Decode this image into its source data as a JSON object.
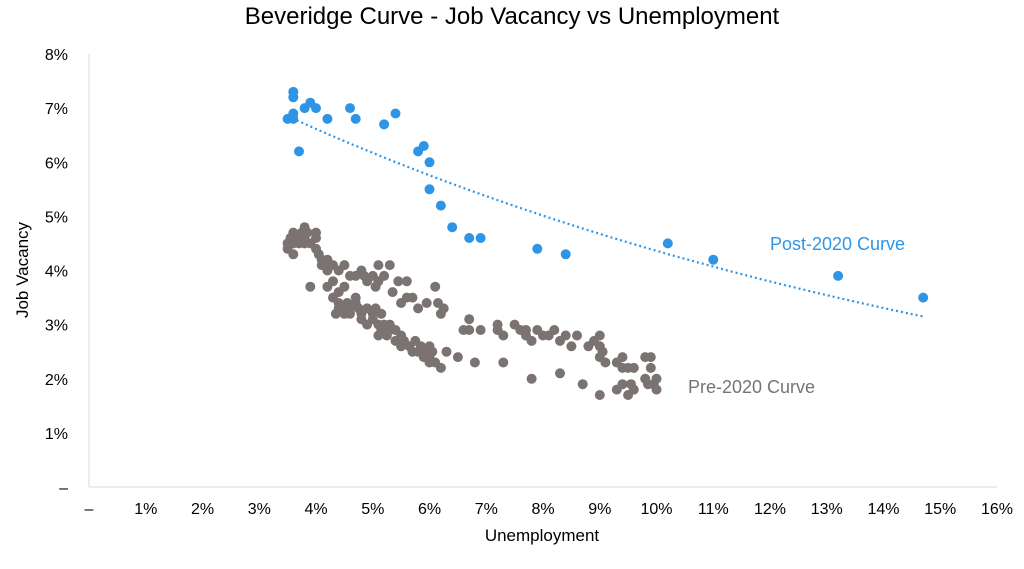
{
  "chart_data": {
    "type": "scatter",
    "title": "Beveridge Curve - Job Vacancy vs Unemployment",
    "xlabel": "Unemployment",
    "ylabel": "Job Vacancy",
    "xlim": [
      0,
      16
    ],
    "ylim": [
      0,
      8
    ],
    "x_ticks": [
      "–",
      "1%",
      "2%",
      "3%",
      "4%",
      "5%",
      "6%",
      "7%",
      "8%",
      "9%",
      "10%",
      "11%",
      "12%",
      "13%",
      "14%",
      "15%",
      "16%"
    ],
    "y_ticks": [
      "–",
      "1%",
      "2%",
      "3%",
      "4%",
      "5%",
      "6%",
      "7%",
      "8%"
    ],
    "grid": false,
    "legend": "none",
    "series": [
      {
        "name": "Post-2020 Curve",
        "color": "#2e95e6",
        "points": [
          [
            3.5,
            6.8
          ],
          [
            3.6,
            7.3
          ],
          [
            3.6,
            7.2
          ],
          [
            3.6,
            6.9
          ],
          [
            3.6,
            6.8
          ],
          [
            3.7,
            6.2
          ],
          [
            3.8,
            7.0
          ],
          [
            3.9,
            7.1
          ],
          [
            4.0,
            7.0
          ],
          [
            4.2,
            6.8
          ],
          [
            4.6,
            7.0
          ],
          [
            4.7,
            6.8
          ],
          [
            5.2,
            6.7
          ],
          [
            5.4,
            6.9
          ],
          [
            5.8,
            6.2
          ],
          [
            5.9,
            6.3
          ],
          [
            6.0,
            6.0
          ],
          [
            6.0,
            5.5
          ],
          [
            6.2,
            5.2
          ],
          [
            6.4,
            4.8
          ],
          [
            6.7,
            4.6
          ],
          [
            6.9,
            4.6
          ],
          [
            7.9,
            4.4
          ],
          [
            8.4,
            4.3
          ],
          [
            10.2,
            4.5
          ],
          [
            11.0,
            4.2
          ],
          [
            13.2,
            3.9
          ],
          [
            14.7,
            3.5
          ]
        ],
        "trendline": {
          "style": "dotted",
          "x_from": 3.5,
          "x_to": 14.7,
          "y_from": 6.85,
          "y_to": 3.15
        }
      },
      {
        "name": "Pre-2020 Curve",
        "color": "#7a7371",
        "points": [
          [
            3.5,
            4.5
          ],
          [
            3.5,
            4.4
          ],
          [
            3.55,
            4.6
          ],
          [
            3.6,
            4.3
          ],
          [
            3.6,
            4.5
          ],
          [
            3.6,
            4.7
          ],
          [
            3.7,
            4.5
          ],
          [
            3.7,
            4.6
          ],
          [
            3.75,
            4.7
          ],
          [
            3.8,
            4.5
          ],
          [
            3.8,
            4.6
          ],
          [
            3.8,
            4.8
          ],
          [
            3.85,
            4.7
          ],
          [
            3.9,
            4.5
          ],
          [
            3.9,
            3.7
          ],
          [
            4.0,
            4.6
          ],
          [
            4.0,
            4.4
          ],
          [
            4.0,
            4.7
          ],
          [
            4.05,
            4.3
          ],
          [
            4.1,
            4.2
          ],
          [
            4.1,
            4.1
          ],
          [
            4.2,
            4.2
          ],
          [
            4.2,
            4.0
          ],
          [
            4.2,
            4.1
          ],
          [
            4.2,
            3.7
          ],
          [
            4.3,
            4.1
          ],
          [
            4.3,
            3.8
          ],
          [
            4.3,
            3.5
          ],
          [
            4.35,
            3.2
          ],
          [
            4.4,
            4.0
          ],
          [
            4.4,
            3.6
          ],
          [
            4.4,
            3.3
          ],
          [
            4.4,
            3.4
          ],
          [
            4.5,
            4.1
          ],
          [
            4.5,
            3.7
          ],
          [
            4.5,
            3.3
          ],
          [
            4.5,
            3.2
          ],
          [
            4.55,
            3.4
          ],
          [
            4.6,
            3.9
          ],
          [
            4.6,
            3.3
          ],
          [
            4.6,
            3.2
          ],
          [
            4.7,
            3.5
          ],
          [
            4.7,
            3.9
          ],
          [
            4.7,
            3.4
          ],
          [
            4.75,
            3.3
          ],
          [
            4.8,
            3.2
          ],
          [
            4.8,
            4.0
          ],
          [
            4.8,
            3.1
          ],
          [
            4.85,
            3.9
          ],
          [
            4.9,
            3.8
          ],
          [
            4.9,
            3.3
          ],
          [
            4.9,
            3.0
          ],
          [
            5.0,
            3.9
          ],
          [
            5.0,
            3.2
          ],
          [
            5.0,
            3.1
          ],
          [
            5.05,
            3.7
          ],
          [
            5.05,
            3.3
          ],
          [
            5.1,
            3.8
          ],
          [
            5.1,
            4.1
          ],
          [
            5.1,
            3.0
          ],
          [
            5.1,
            2.8
          ],
          [
            5.15,
            3.2
          ],
          [
            5.15,
            2.9
          ],
          [
            5.2,
            3.9
          ],
          [
            5.2,
            3.0
          ],
          [
            5.25,
            2.8
          ],
          [
            5.3,
            4.1
          ],
          [
            5.3,
            3.0
          ],
          [
            5.3,
            2.9
          ],
          [
            5.35,
            3.6
          ],
          [
            5.4,
            2.9
          ],
          [
            5.4,
            2.7
          ],
          [
            5.45,
            3.8
          ],
          [
            5.5,
            3.4
          ],
          [
            5.5,
            2.8
          ],
          [
            5.5,
            2.6
          ],
          [
            5.55,
            2.7
          ],
          [
            5.6,
            3.8
          ],
          [
            5.6,
            3.5
          ],
          [
            5.65,
            2.6
          ],
          [
            5.7,
            3.5
          ],
          [
            5.7,
            2.5
          ],
          [
            5.75,
            2.7
          ],
          [
            5.8,
            3.3
          ],
          [
            5.8,
            2.5
          ],
          [
            5.85,
            2.6
          ],
          [
            5.9,
            2.5
          ],
          [
            5.9,
            2.4
          ],
          [
            5.95,
            3.4
          ],
          [
            6.0,
            2.4
          ],
          [
            6.0,
            2.6
          ],
          [
            6.0,
            2.3
          ],
          [
            6.05,
            2.5
          ],
          [
            6.1,
            3.7
          ],
          [
            6.1,
            2.3
          ],
          [
            6.15,
            3.4
          ],
          [
            6.2,
            2.2
          ],
          [
            6.2,
            3.2
          ],
          [
            6.25,
            3.3
          ],
          [
            6.3,
            2.5
          ],
          [
            6.5,
            2.4
          ],
          [
            6.6,
            2.9
          ],
          [
            6.7,
            3.1
          ],
          [
            6.7,
            2.9
          ],
          [
            6.8,
            2.3
          ],
          [
            6.9,
            2.9
          ],
          [
            7.2,
            3.0
          ],
          [
            7.2,
            2.9
          ],
          [
            7.3,
            2.8
          ],
          [
            7.3,
            2.3
          ],
          [
            7.5,
            3.0
          ],
          [
            7.6,
            2.9
          ],
          [
            7.7,
            2.9
          ],
          [
            7.7,
            2.8
          ],
          [
            7.8,
            2.7
          ],
          [
            7.8,
            2.0
          ],
          [
            7.9,
            2.9
          ],
          [
            8.0,
            2.8
          ],
          [
            8.1,
            2.8
          ],
          [
            8.2,
            2.9
          ],
          [
            8.3,
            2.7
          ],
          [
            8.3,
            2.1
          ],
          [
            8.4,
            2.8
          ],
          [
            8.5,
            2.6
          ],
          [
            8.6,
            2.8
          ],
          [
            8.7,
            1.9
          ],
          [
            8.8,
            2.6
          ],
          [
            8.9,
            2.7
          ],
          [
            9.0,
            2.8
          ],
          [
            9.0,
            2.6
          ],
          [
            9.0,
            2.4
          ],
          [
            9.0,
            1.7
          ],
          [
            9.05,
            2.5
          ],
          [
            9.1,
            2.3
          ],
          [
            9.3,
            2.3
          ],
          [
            9.3,
            1.8
          ],
          [
            9.4,
            2.4
          ],
          [
            9.4,
            2.2
          ],
          [
            9.4,
            1.9
          ],
          [
            9.5,
            2.2
          ],
          [
            9.5,
            1.7
          ],
          [
            9.55,
            1.9
          ],
          [
            9.6,
            2.2
          ],
          [
            9.6,
            1.8
          ],
          [
            9.8,
            2.4
          ],
          [
            9.8,
            2.0
          ],
          [
            9.85,
            1.9
          ],
          [
            9.9,
            2.2
          ],
          [
            9.9,
            2.4
          ],
          [
            9.95,
            1.9
          ],
          [
            10.0,
            2.0
          ],
          [
            10.0,
            1.8
          ]
        ]
      }
    ],
    "annotations": [
      {
        "text": "Post-2020 Curve",
        "series": 0,
        "color": "#2e95e6"
      },
      {
        "text": "Pre-2020 Curve",
        "series": 1,
        "color": "#7a7371"
      }
    ]
  }
}
